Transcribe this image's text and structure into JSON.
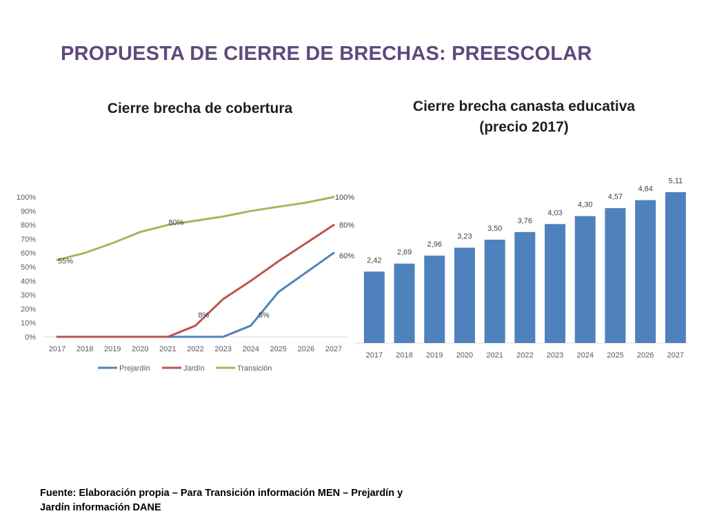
{
  "title": "PROPUESTA DE CIERRE DE BRECHAS: PREESCOLAR",
  "source": "Fuente: Elaboración propia – Para Transición información MEN – Prejardín y Jardín información DANE",
  "colors": {
    "title": "#5f497a",
    "prejardin": "#4f81bd",
    "jardin": "#c0504d",
    "transicion": "#9bbb59",
    "bars": "#4f81bd"
  },
  "chart_data": [
    {
      "type": "line",
      "title": "Cierre brecha de cobertura",
      "x": [
        "2017",
        "2018",
        "2019",
        "2020",
        "2021",
        "2022",
        "2023",
        "2024",
        "2025",
        "2026",
        "2027"
      ],
      "y_ticks": [
        "0%",
        "10%",
        "20%",
        "30%",
        "40%",
        "50%",
        "60%",
        "70%",
        "80%",
        "90%",
        "100%"
      ],
      "ylim": [
        0,
        100
      ],
      "legend_position": "bottom",
      "series": [
        {
          "name": "Prejardín",
          "values": [
            0,
            0,
            0,
            0,
            0,
            0,
            0,
            8,
            32,
            46,
            60
          ]
        },
        {
          "name": "Jardín",
          "values": [
            0,
            0,
            0,
            0,
            0,
            8,
            27,
            40,
            54,
            67,
            80
          ]
        },
        {
          "name": "Transición",
          "values": [
            55,
            60,
            67,
            75,
            80,
            83,
            86,
            90,
            93,
            96,
            100
          ]
        }
      ],
      "data_labels": [
        {
          "series": 2,
          "index": 0,
          "text": "55%"
        },
        {
          "series": 2,
          "index": 4,
          "text": "80%"
        },
        {
          "series": 2,
          "index": 10,
          "text": "100%"
        },
        {
          "series": 1,
          "index": 5,
          "text": "8%"
        },
        {
          "series": 1,
          "index": 10,
          "text": "80%"
        },
        {
          "series": 0,
          "index": 7,
          "text": "8%"
        },
        {
          "series": 0,
          "index": 10,
          "text": "60%"
        }
      ]
    },
    {
      "type": "bar",
      "title": "Cierre brecha canasta educativa (precio 2017)",
      "categories": [
        "2017",
        "2018",
        "2019",
        "2020",
        "2021",
        "2022",
        "2023",
        "2024",
        "2025",
        "2026",
        "2027"
      ],
      "values": [
        2.42,
        2.69,
        2.96,
        3.23,
        3.5,
        3.76,
        4.03,
        4.3,
        4.57,
        4.84,
        5.11
      ],
      "value_labels": [
        "2,42",
        "2,69",
        "2,96",
        "3,23",
        "3,50",
        "3,76",
        "4,03",
        "4,30",
        "4,57",
        "4,84",
        "5,11"
      ],
      "ylim": [
        0,
        5.11
      ]
    }
  ]
}
